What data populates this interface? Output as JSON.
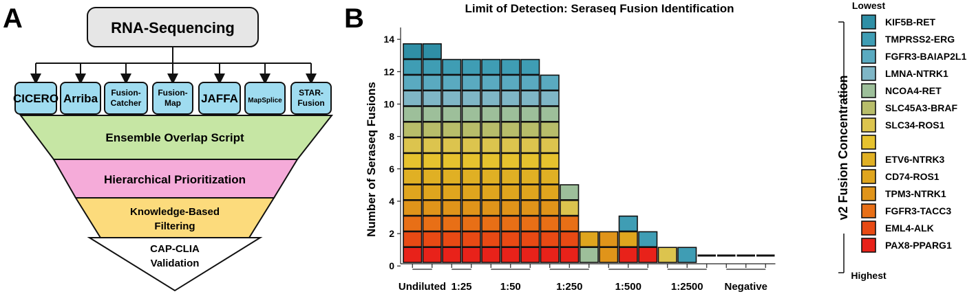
{
  "panel_a": {
    "letter": "A",
    "top_box": "RNA-Sequencing",
    "tools": [
      [
        "CICERO"
      ],
      [
        "Arriba"
      ],
      [
        "Fusion-",
        "Catcher"
      ],
      [
        "Fusion-",
        "Map"
      ],
      [
        "JAFFA"
      ],
      [
        "MapSplice"
      ],
      [
        "STAR-",
        "Fusion"
      ]
    ],
    "stages": [
      {
        "lines": [
          "Ensemble Overlap Script"
        ],
        "color": "#c6e6a4"
      },
      {
        "lines": [
          "Hierarchical Prioritization"
        ],
        "color": "#f5abd9"
      },
      {
        "lines": [
          "Knowledge-Based",
          "Filtering"
        ],
        "color": "#fcdb7c"
      },
      {
        "lines": [
          "CAP-CLIA",
          "Validation"
        ],
        "color": "#ffffff"
      }
    ],
    "colors": {
      "top_box": "#e6e6e6",
      "tool_box": "#9fdcf0"
    }
  },
  "panel_b": {
    "letter": "B",
    "legend_top": "Lowest",
    "legend_bottom": "Highest",
    "legend_axis_label": "v2 Fusion Concentration"
  },
  "chart_data": {
    "type": "bar",
    "subtype": "stacked tile bar",
    "title": "Limit of Detection: Seraseq Fusion Identification",
    "ylabel": "Number of Seraseq Fusions",
    "xlabel": "",
    "ylim": [
      0,
      14
    ],
    "yticks": [
      0,
      2,
      4,
      6,
      8,
      10,
      12,
      14
    ],
    "groups": [
      "Undiluted",
      "1:25",
      "1:50",
      "1:250",
      "1:500",
      "1:2500",
      "Negative"
    ],
    "group_replicates": [
      2,
      2,
      3,
      3,
      3,
      3,
      3
    ],
    "series": [
      {
        "name": "PAX8-PPARG1",
        "color": "#e8221a"
      },
      {
        "name": "EML4-ALK",
        "color": "#e84a14"
      },
      {
        "name": "FGFR3-TACC3",
        "color": "#e86f16"
      },
      {
        "name": "TPM3-NTRK1",
        "color": "#e0941a"
      },
      {
        "name": "CD74-ROS1",
        "color": "#dfa51e"
      },
      {
        "name": "ETV6-NTRK3",
        "color": "#e0b024"
      },
      {
        "name": "",
        "color": "#e6c22e"
      },
      {
        "name": "SLC34-ROS1",
        "color": "#dcc44e"
      },
      {
        "name": "SLC45A3-BRAF",
        "color": "#b8bd6a"
      },
      {
        "name": "NCOA4-RET",
        "color": "#9dbf9a"
      },
      {
        "name": "LMNA-NTRK1",
        "color": "#7fb6c6"
      },
      {
        "name": "FGFR3-BAIAP2L1",
        "color": "#5aaac0"
      },
      {
        "name": "TMPRSS2-ERG",
        "color": "#3f9db4"
      },
      {
        "name": "KIF5B-RET",
        "color": "#2f8fa6"
      }
    ],
    "columns": [
      {
        "group": "Undiluted",
        "detected": [
          0,
          1,
          2,
          3,
          4,
          5,
          6,
          7,
          8,
          9,
          10,
          11,
          12,
          13
        ]
      },
      {
        "group": "Undiluted",
        "detected": [
          0,
          1,
          2,
          3,
          4,
          5,
          6,
          7,
          8,
          9,
          10,
          11,
          12,
          13
        ]
      },
      {
        "group": "1:25",
        "detected": [
          0,
          1,
          2,
          3,
          4,
          5,
          6,
          7,
          8,
          9,
          10,
          11,
          12
        ]
      },
      {
        "group": "1:25",
        "detected": [
          0,
          1,
          2,
          3,
          4,
          5,
          6,
          7,
          8,
          9,
          10,
          11,
          12
        ]
      },
      {
        "group": "1:50",
        "detected": [
          0,
          1,
          2,
          3,
          4,
          5,
          6,
          7,
          8,
          9,
          10,
          11,
          12
        ]
      },
      {
        "group": "1:50",
        "detected": [
          0,
          1,
          2,
          3,
          4,
          5,
          6,
          7,
          8,
          9,
          10,
          11,
          12
        ]
      },
      {
        "group": "1:50",
        "detected": [
          0,
          1,
          2,
          3,
          4,
          5,
          6,
          7,
          8,
          9,
          10,
          11,
          12
        ]
      },
      {
        "group": "1:250",
        "detected": [
          0,
          1,
          2,
          3,
          4,
          5,
          6,
          7,
          8,
          9,
          10,
          11
        ]
      },
      {
        "group": "1:250",
        "detected": [
          0,
          1,
          2,
          7,
          9
        ]
      },
      {
        "group": "1:250",
        "detected": [
          9,
          4
        ]
      },
      {
        "group": "1:500",
        "detected": [
          3,
          3
        ]
      },
      {
        "group": "1:500",
        "detected": [
          0,
          4,
          12
        ]
      },
      {
        "group": "1:500",
        "detected": [
          0,
          12
        ]
      },
      {
        "group": "1:2500",
        "detected": [
          7
        ]
      },
      {
        "group": "1:2500",
        "detected": [
          12
        ]
      },
      {
        "group": "1:2500",
        "detected": []
      },
      {
        "group": "Negative",
        "detected": []
      },
      {
        "group": "Negative",
        "detected": []
      },
      {
        "group": "Negative",
        "detected": []
      }
    ]
  }
}
